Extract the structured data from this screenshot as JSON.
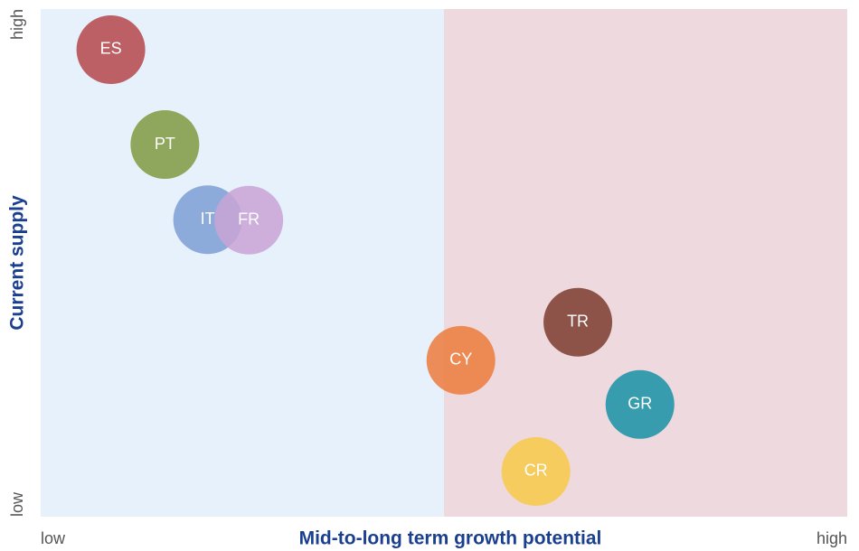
{
  "chart_data": {
    "type": "bubble",
    "xlabel": "Mid-to-long term growth potential",
    "ylabel": "Current supply",
    "xlim": [
      0,
      100
    ],
    "ylim": [
      0,
      100
    ],
    "xticks": [
      {
        "value": 0,
        "label": "low"
      },
      {
        "value": 100,
        "label": "high"
      }
    ],
    "yticks": [
      {
        "value": 0,
        "label": "low"
      },
      {
        "value": 100,
        "label": "high"
      }
    ],
    "regions": [
      {
        "xlim": [
          0,
          50
        ],
        "color": "#e6f1fb"
      },
      {
        "xlim": [
          50,
          100
        ],
        "color": "#eed9df"
      }
    ],
    "points": [
      {
        "label": "ES",
        "x": 8.7,
        "y": 92.0,
        "color": "#b5474b"
      },
      {
        "label": "PT",
        "x": 15.4,
        "y": 73.3,
        "color": "#7f9a40"
      },
      {
        "label": "IT",
        "x": 20.7,
        "y": 58.5,
        "color": "#7b9fd3"
      },
      {
        "label": "FR",
        "x": 25.8,
        "y": 58.4,
        "color": "#c9a3d6"
      },
      {
        "label": "TR",
        "x": 66.6,
        "y": 38.3,
        "color": "#7b3b2e"
      },
      {
        "label": "CY",
        "x": 52.1,
        "y": 30.8,
        "color": "#ec7b3c"
      },
      {
        "label": "GR",
        "x": 74.3,
        "y": 22.1,
        "color": "#1591a6"
      },
      {
        "label": "CR",
        "x": 61.4,
        "y": 8.9,
        "color": "#f7c948"
      }
    ]
  }
}
